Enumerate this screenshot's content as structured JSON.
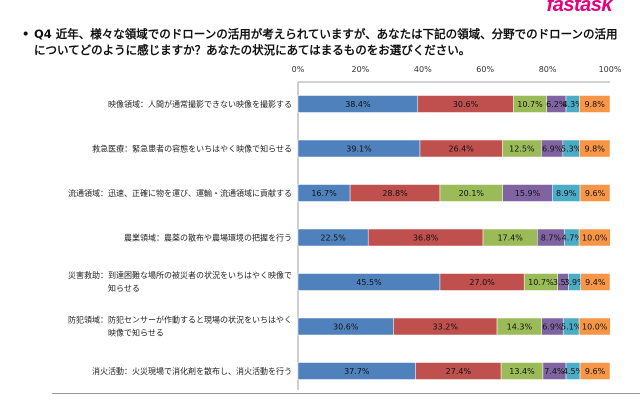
{
  "logo_text": "fastask",
  "question": {
    "bullet": "•",
    "text": "Q4 近年、様々な領域でのドローンの活用が考えられていますが、あなたは下記の領域、分野でのドローンの活用についてどのように感じますか？あなたの状況にあてはまるものをお選びください。"
  },
  "colors": {
    "series": [
      "#4f81bd",
      "#c0504d",
      "#9bbb59",
      "#8064a2",
      "#4bacc6",
      "#f79646"
    ]
  },
  "chart_data": {
    "type": "bar",
    "orientation": "horizontal",
    "stacked": true,
    "xlim": [
      0,
      100
    ],
    "xticks": [
      "0%",
      "20%",
      "40%",
      "60%",
      "80%",
      "100%"
    ],
    "grid": false,
    "categories": [
      "映像領域：人間が通常撮影できない映像を撮影する",
      "救急医療：緊急患者の容態をいちはやく映像で知らせる",
      "流通領域：迅速、正確に物を運び、運輸・流通領域に貢献する",
      "農業領域：農薬の散布や農場環境の把握を行う",
      "災害救助：到達困難な場所の被災者の状況をいちはやく映像で知らせる",
      "防犯領域：防犯センサーが作動すると現場の状況をいちはやく映像で知らせる",
      "消火活動：火災現場で消化剤を散布し、消火活動を行う"
    ],
    "category_lines": [
      [
        "映像領域：人間が通常撮影できない映像を撮影する"
      ],
      [
        "救急医療：緊急患者の容態をいちはやく映像で知らせる"
      ],
      [
        "流通領域：迅速、正確に物を運び、運輸・流通領域に貢献する"
      ],
      [
        "農業領域：農薬の散布や農場環境の把握を行う"
      ],
      [
        "災害救助：到達困難な場所の被災者の状況をいちはやく映像で",
        "知らせる"
      ],
      [
        "防犯領域：防犯センサーが作動すると現場の状況をいちはやく",
        "映像で知らせる"
      ],
      [
        "消火活動：火災現場で消化剤を散布し、消火活動を行う"
      ]
    ],
    "series": [
      {
        "values": [
          38.4,
          39.1,
          16.7,
          22.5,
          45.5,
          30.6,
          37.7
        ]
      },
      {
        "values": [
          30.6,
          26.4,
          28.8,
          36.8,
          27.0,
          33.2,
          27.4
        ]
      },
      {
        "values": [
          10.7,
          12.5,
          20.1,
          17.4,
          10.7,
          14.3,
          13.4
        ]
      },
      {
        "values": [
          6.2,
          6.9,
          15.9,
          8.7,
          3.5,
          6.9,
          7.4
        ]
      },
      {
        "values": [
          4.3,
          5.3,
          8.9,
          4.7,
          3.9,
          5.1,
          4.5
        ]
      },
      {
        "values": [
          9.8,
          9.8,
          9.6,
          10.0,
          9.4,
          10.0,
          9.6
        ]
      }
    ],
    "data_labels": [
      [
        "38.4%",
        "30.6%",
        "10.7%",
        "6.2%",
        "4.3%",
        "9.8%"
      ],
      [
        "39.1%",
        "26.4%",
        "12.5%",
        "6.9%",
        "5.3%",
        "9.8%"
      ],
      [
        "16.7%",
        "28.8%",
        "20.1%",
        "15.9%",
        "8.9%",
        "9.6%"
      ],
      [
        "22.5%",
        "36.8%",
        "17.4%",
        "8.7%",
        "4.7%",
        "10.0%"
      ],
      [
        "45.5%",
        "27.0%",
        "10.7%",
        "3.5%",
        "3.9%",
        "9.4%"
      ],
      [
        "30.6%",
        "33.2%",
        "14.3%",
        "6.9%",
        "5.1%",
        "10.0%"
      ],
      [
        "37.7%",
        "27.4%",
        "13.4%",
        "7.4%",
        "4.5%",
        "9.6%"
      ]
    ]
  }
}
